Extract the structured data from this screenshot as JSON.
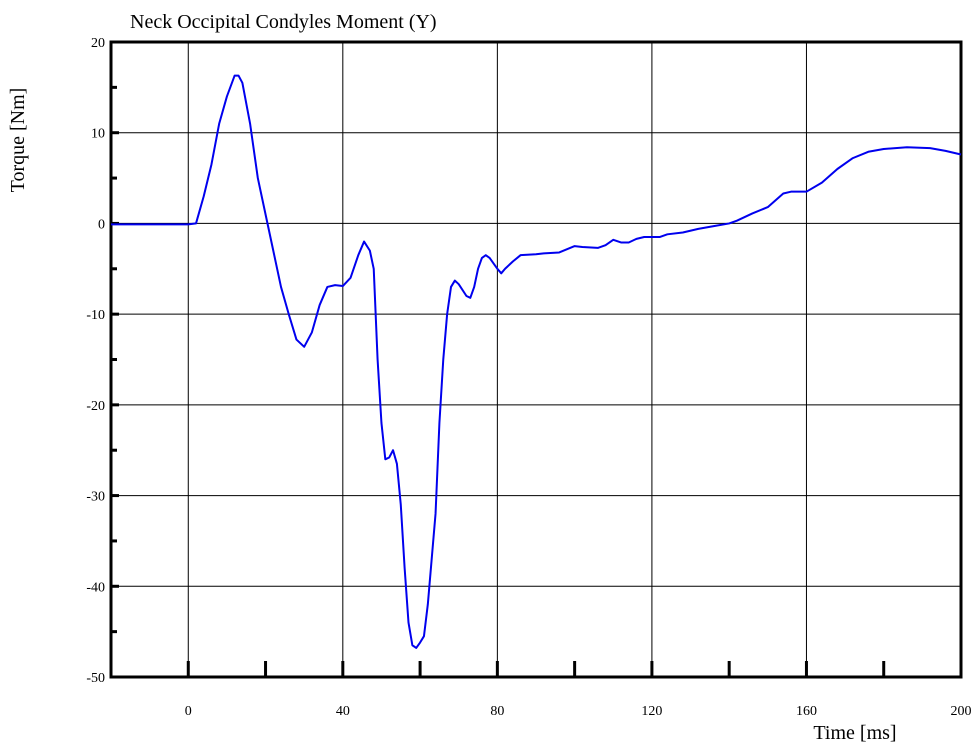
{
  "chart_data": {
    "type": "line",
    "title": "Neck Occipital Condyles Moment (Y)",
    "xlabel": "Time [ms]",
    "ylabel": "Torque [Nm]",
    "xlim": [
      -20,
      200
    ],
    "ylim": [
      -50,
      20
    ],
    "xticks": [
      0,
      40,
      80,
      120,
      160,
      200
    ],
    "yticks": [
      20,
      10,
      0,
      -10,
      -20,
      -30,
      -40,
      -50
    ],
    "xminorticks": [
      0,
      20,
      40,
      60,
      80,
      100,
      120,
      140,
      160,
      180
    ],
    "yminorticks": [
      15,
      5,
      -5,
      -15,
      -25,
      -35,
      -45
    ],
    "grid": true,
    "series": [
      {
        "name": "Neck Occipital Condyles Moment (Y)",
        "color": "#0000ee",
        "x": [
          -20,
          0,
          2,
          4,
          6,
          8,
          10,
          12,
          13,
          14,
          16,
          18,
          20,
          22,
          24,
          26,
          28,
          30,
          32,
          34,
          36,
          38,
          40,
          42,
          44,
          45.5,
          47,
          48,
          49,
          50,
          51,
          52,
          53,
          54,
          55,
          56,
          57,
          58,
          59,
          60,
          61,
          62,
          64,
          65,
          66,
          67,
          68,
          69,
          70,
          72,
          73,
          74,
          75,
          76,
          77,
          78,
          80,
          81,
          82,
          84,
          86,
          90,
          92,
          96,
          100,
          102,
          106,
          108,
          110,
          112,
          114,
          116,
          118,
          122,
          124,
          128,
          132,
          136,
          140,
          142,
          146,
          150,
          154,
          156,
          160,
          164,
          168,
          172,
          176,
          180,
          186,
          192,
          196,
          200
        ],
        "values": [
          -0.1,
          -0.1,
          0,
          3,
          6.5,
          11,
          14,
          16.3,
          16.3,
          15.5,
          11,
          5,
          1,
          -3,
          -7,
          -10,
          -12.8,
          -13.6,
          -12,
          -9,
          -7,
          -6.8,
          -6.9,
          -6,
          -3.5,
          -2,
          -3,
          -5,
          -15,
          -22,
          -26,
          -25.8,
          -25,
          -26.5,
          -31,
          -38,
          -44,
          -46.5,
          -46.8,
          -46.2,
          -45.5,
          -42,
          -32,
          -22,
          -15,
          -10,
          -7,
          -6.3,
          -6.7,
          -8,
          -8.2,
          -7,
          -5,
          -3.8,
          -3.5,
          -3.8,
          -5,
          -5.5,
          -5,
          -4.2,
          -3.5,
          -3.4,
          -3.3,
          -3.2,
          -2.5,
          -2.6,
          -2.7,
          -2.4,
          -1.8,
          -2.1,
          -2.1,
          -1.7,
          -1.5,
          -1.5,
          -1.2,
          -1.0,
          -0.6,
          -0.3,
          0,
          0.3,
          1.1,
          1.8,
          3.3,
          3.5,
          3.5,
          4.5,
          6.0,
          7.2,
          7.9,
          8.2,
          8.4,
          8.3,
          8.0,
          7.6
        ]
      }
    ]
  }
}
